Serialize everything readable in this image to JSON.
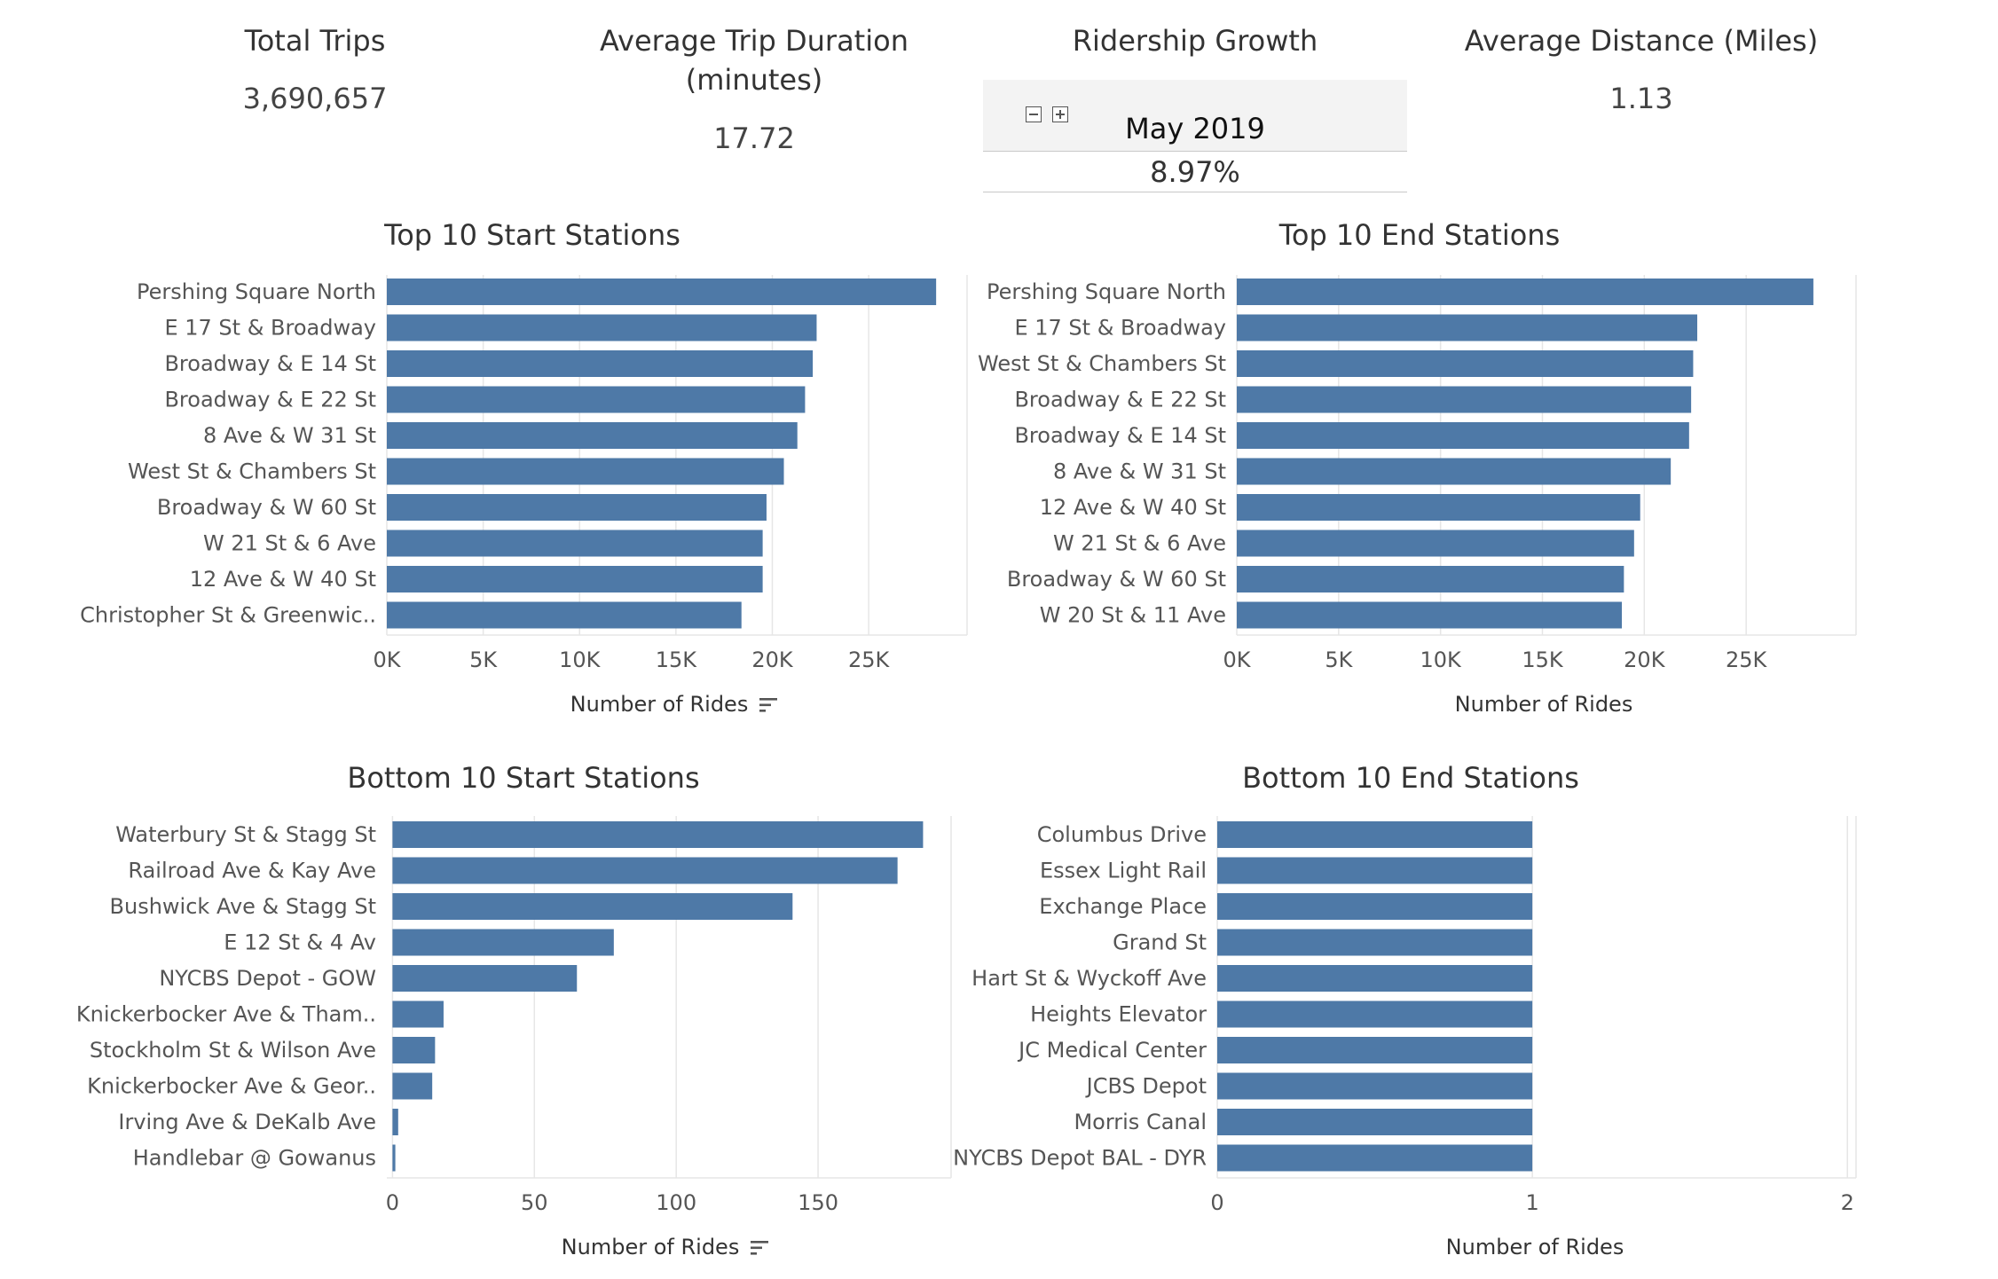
{
  "kpis": {
    "total_trips": {
      "title": "Total Trips",
      "value": "3,690,657"
    },
    "avg_duration": {
      "title_line1": "Average Trip Duration",
      "title_line2": "(minutes)",
      "value": "17.72"
    },
    "ridership_growth": {
      "title": "Ridership Growth",
      "period": "May 2019",
      "value": "8.97%"
    },
    "avg_distance": {
      "title": "Average Distance (Miles)",
      "value": "1.13"
    }
  },
  "colors": {
    "bar": "#4e79a7",
    "grid": "#e6e6e6",
    "text": "#555555"
  },
  "chart_data": [
    {
      "id": "top-start",
      "type": "bar",
      "orientation": "horizontal",
      "title": "Top 10 Start Stations",
      "xlabel": "Number of Rides",
      "sorted_indicator": true,
      "categories": [
        "Pershing Square North",
        "E 17 St & Broadway",
        "Broadway & E 14 St",
        "Broadway & E 22 St",
        "8 Ave & W 31 St",
        "West St & Chambers St",
        "Broadway & W 60 St",
        "W 21 St & 6 Ave",
        "12 Ave & W 40 St",
        "Christopher St & Greenwic.."
      ],
      "values": [
        28500,
        22300,
        22100,
        21700,
        21300,
        20600,
        19700,
        19500,
        19500,
        18400
      ],
      "xlim": [
        0,
        29000
      ],
      "ticks": [
        0,
        5000,
        10000,
        15000,
        20000,
        25000
      ],
      "tick_labels": [
        "0K",
        "5K",
        "10K",
        "15K",
        "20K",
        "25K"
      ],
      "grid": true
    },
    {
      "id": "top-end",
      "type": "bar",
      "orientation": "horizontal",
      "title": "Top 10 End Stations",
      "xlabel": "Number of Rides",
      "sorted_indicator": false,
      "categories": [
        "Pershing Square North",
        "E 17 St & Broadway",
        "West St & Chambers St",
        "Broadway & E 22 St",
        "Broadway & E 14 St",
        "8 Ave & W 31 St",
        "12 Ave & W 40 St",
        "W 21 St & 6 Ave",
        "Broadway & W 60 St",
        "W 20 St & 11 Ave"
      ],
      "values": [
        28300,
        22600,
        22400,
        22300,
        22200,
        21300,
        19800,
        19500,
        19000,
        18900
      ],
      "xlim": [
        0,
        29000
      ],
      "ticks": [
        0,
        5000,
        10000,
        15000,
        20000,
        25000
      ],
      "tick_labels": [
        "0K",
        "5K",
        "10K",
        "15K",
        "20K",
        "25K"
      ],
      "grid": true
    },
    {
      "id": "bottom-start",
      "type": "bar",
      "orientation": "horizontal",
      "title": "Bottom 10 Start Stations",
      "xlabel": "Number of Rides",
      "sorted_indicator": true,
      "categories": [
        "Waterbury St & Stagg St",
        "Railroad Ave & Kay Ave",
        "Bushwick Ave & Stagg St",
        "E 12 St & 4 Av",
        "NYCBS Depot - GOW",
        "Knickerbocker Ave & Tham..",
        "Stockholm St & Wilson Ave",
        "Knickerbocker Ave & Geor..",
        "Irving Ave & DeKalb Ave",
        "Handlebar @ Gowanus"
      ],
      "values": [
        187,
        178,
        141,
        78,
        65,
        18,
        15,
        14,
        2,
        1
      ],
      "xlim": [
        -2,
        195
      ],
      "ticks": [
        0,
        50,
        100,
        150
      ],
      "tick_labels": [
        "0",
        "50",
        "100",
        "150"
      ],
      "grid": true
    },
    {
      "id": "bottom-end",
      "type": "bar",
      "orientation": "horizontal",
      "title": "Bottom 10 End Stations",
      "xlabel": "Number of Rides",
      "sorted_indicator": false,
      "categories": [
        "Columbus Drive",
        "Essex Light Rail",
        "Exchange Place",
        "Grand St",
        "Hart St & Wyckoff Ave",
        "Heights Elevator",
        "JC Medical Center",
        "JCBS Depot",
        "Morris Canal",
        "NYCBS Depot BAL - DYR"
      ],
      "values": [
        1,
        1,
        1,
        1,
        1,
        1,
        1,
        1,
        1,
        1
      ],
      "xlim": [
        0,
        2.05
      ],
      "ticks": [
        0,
        1,
        2
      ],
      "tick_labels": [
        "0",
        "1",
        "2"
      ],
      "grid": true
    }
  ]
}
